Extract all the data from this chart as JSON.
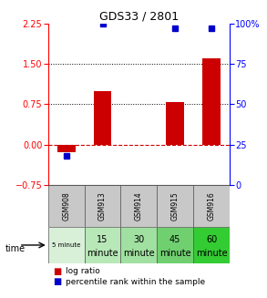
{
  "title": "GDS33 / 2801",
  "samples": [
    "GSM908",
    "GSM913",
    "GSM914",
    "GSM915",
    "GSM916"
  ],
  "time_labels_line1": [
    "5 minute",
    "15",
    "30",
    "45",
    "60"
  ],
  "time_labels_line2": [
    "",
    "minute",
    "minute",
    "minute",
    "minute"
  ],
  "time_colors": [
    "#d8f0d8",
    "#b8e8b8",
    "#a0e0a0",
    "#70d070",
    "#33cc33"
  ],
  "log_ratio_vals": [
    -0.15,
    1.0,
    0.0,
    0.8,
    1.6
  ],
  "percentile_vals": [
    18,
    100,
    null,
    97,
    97
  ],
  "bar_color": "#cc0000",
  "dot_color": "#0000cc",
  "ylim_left": [
    -0.75,
    2.25
  ],
  "ylim_right": [
    0,
    100
  ],
  "yticks_left": [
    -0.75,
    0,
    0.75,
    1.5,
    2.25
  ],
  "yticks_right": [
    0,
    25,
    50,
    75,
    100
  ],
  "hline_y": [
    0.75,
    1.5
  ],
  "zero_line_y": 0.0,
  "bg_color": "#ffffff"
}
